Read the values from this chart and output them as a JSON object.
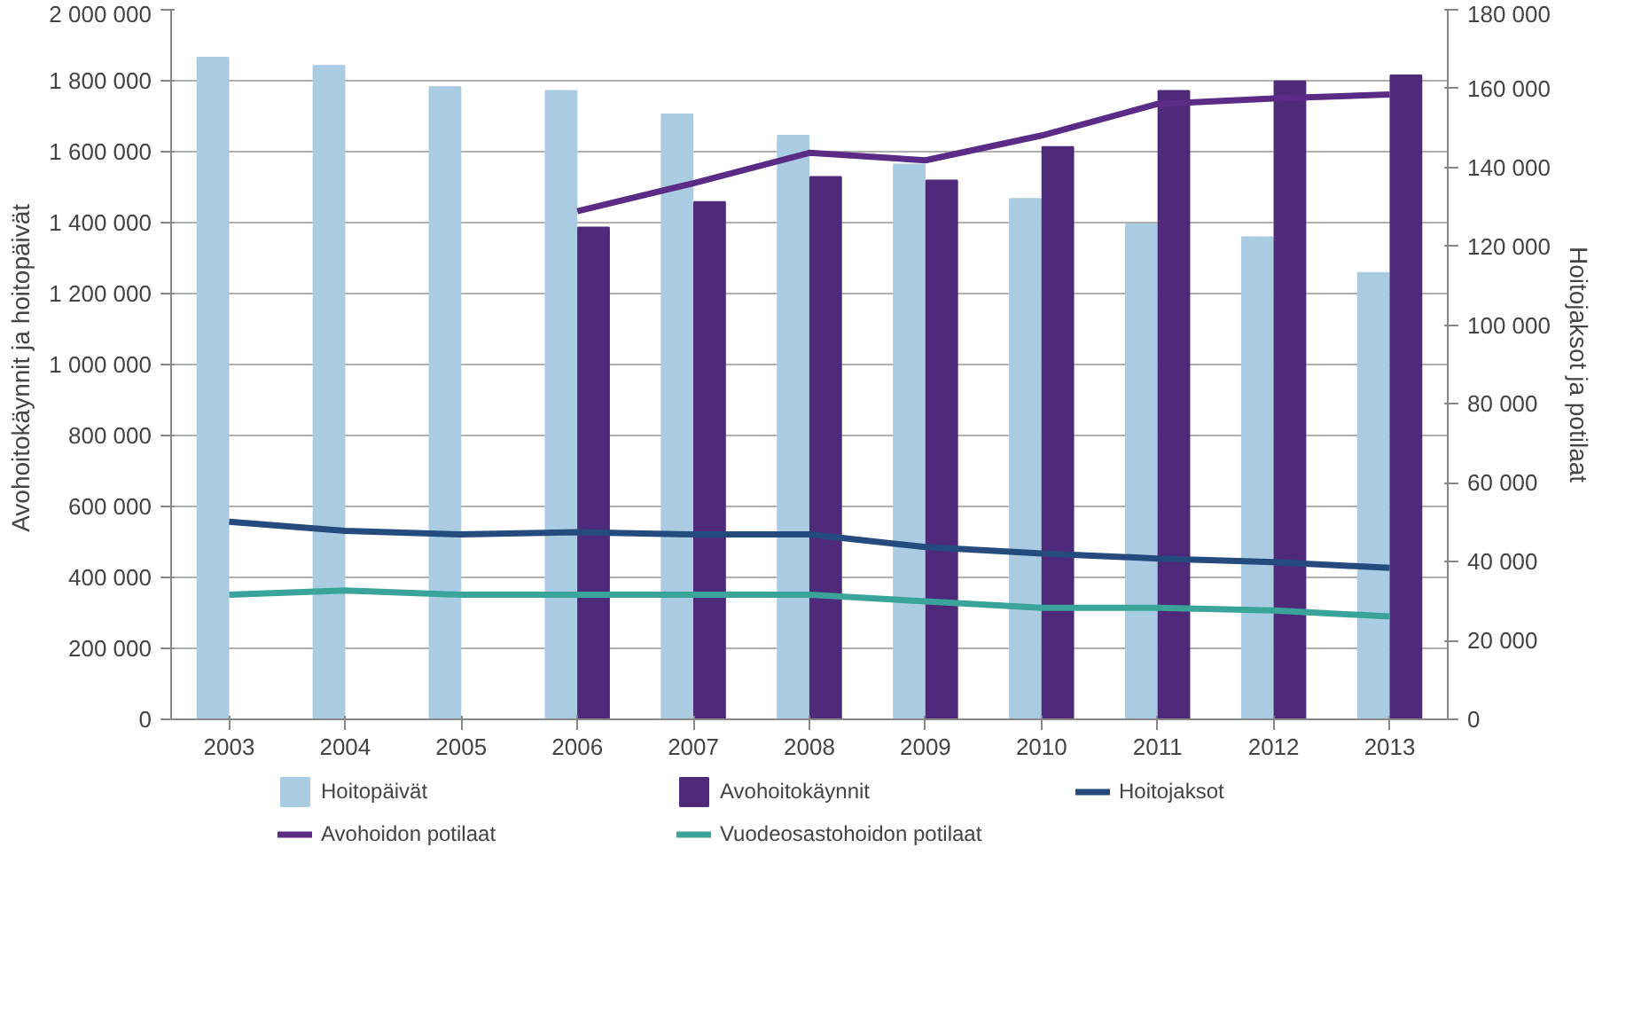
{
  "chart_data": {
    "type": "bar",
    "ylabel": "Avohoitokäynnit  ja hoitopäivät",
    "y2label": "Hoitojaksot ja potilaat",
    "categories": [
      "2003",
      "2004",
      "2005",
      "2006",
      "2007",
      "2008",
      "2009",
      "2010",
      "2011",
      "2012",
      "2013"
    ],
    "series": [
      {
        "name": "Hoitopäivät",
        "color": "#a9cce3",
        "values": [
          1865000,
          1842000,
          1782000,
          1771000,
          1705000,
          1645000,
          1564000,
          1467000,
          1395000,
          1359000,
          1258000
        ]
      },
      {
        "name": "Avohoitokäynnit",
        "color": "#4f2a7a",
        "values": [
          null,
          null,
          null,
          1386000,
          1458000,
          1529000,
          1519000,
          1613000,
          1771000,
          1798000,
          1815000
        ]
      },
      {
        "name": "Hoitojaksot",
        "type": "line",
        "axis": "y2",
        "color": "#254b7e",
        "values": [
          50100,
          47800,
          46900,
          47500,
          46900,
          46900,
          43700,
          42100,
          40800,
          39900,
          38400
        ]
      },
      {
        "name": "Avohoidon potilaat",
        "type": "line",
        "axis": "y2",
        "color": "#5b2c86",
        "values": [
          null,
          null,
          null,
          128900,
          136000,
          143700,
          141800,
          148100,
          156100,
          157500,
          158500
        ]
      },
      {
        "name": "Vuodeosastohoidon potilaat",
        "type": "line",
        "axis": "y2",
        "color": "#3aa49a",
        "values": [
          31600,
          32700,
          31600,
          31600,
          31600,
          31600,
          29900,
          28300,
          28300,
          27600,
          26100
        ]
      }
    ],
    "ylim": [
      0,
      2000000
    ],
    "yticks": [
      0,
      {
        "value": 200000,
        "label": "200 000"
      },
      {
        "value": 400000,
        "label": "400 000"
      },
      {
        "value": 600000,
        "label": "600 000"
      },
      {
        "value": 800000,
        "label": "800 000"
      },
      {
        "value": 1000000,
        "label": "1 000 000"
      },
      {
        "value": 1200000,
        "label": "1 200 000"
      },
      {
        "value": 1400000,
        "label": "1 400 000"
      },
      {
        "value": 1600000,
        "label": "1 600 000"
      },
      {
        "value": 1800000,
        "label": "1 800 000"
      },
      {
        "value": 2000000,
        "label": "2 000 000"
      }
    ],
    "y2lim": [
      0,
      180000
    ],
    "y2ticks": [
      0,
      {
        "value": 20000,
        "label": "20 000"
      },
      {
        "value": 40000,
        "label": "40 000"
      },
      {
        "value": 60000,
        "label": "60 000"
      },
      {
        "value": 80000,
        "label": "80 000"
      },
      {
        "value": 100000,
        "label": "100 000"
      },
      {
        "value": 120000,
        "label": "120 000"
      },
      {
        "value": 140000,
        "label": "140 000"
      },
      {
        "value": 160000,
        "label": "160 000"
      },
      {
        "value": 180000,
        "label": "180 000"
      }
    ],
    "grid": "y",
    "legend": "bottom"
  }
}
